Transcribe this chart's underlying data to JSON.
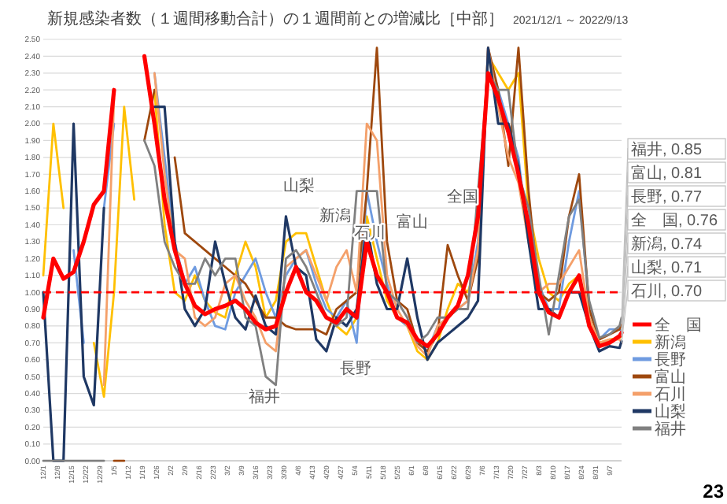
{
  "chart_data": {
    "type": "line",
    "title": "新規感染者数（１週間移動合計）の１週間前との増減比［中部］",
    "subtitle": "2021/12/1 ～ 2022/9/13",
    "x": [
      "2021-12-01",
      "2021-12-06",
      "2021-12-11",
      "2021-12-16",
      "2021-12-21",
      "2021-12-26",
      "2021-12-31",
      "2022-01-05",
      "2022-01-10",
      "2022-01-15",
      "2022-01-20",
      "2022-01-25",
      "2022-01-30",
      "2022-02-04",
      "2022-02-09",
      "2022-02-14",
      "2022-02-19",
      "2022-02-24",
      "2022-03-01",
      "2022-03-06",
      "2022-03-11",
      "2022-03-16",
      "2022-03-21",
      "2022-03-26",
      "2022-03-31",
      "2022-04-05",
      "2022-04-10",
      "2022-04-15",
      "2022-04-20",
      "2022-04-25",
      "2022-04-30",
      "2022-05-05",
      "2022-05-10",
      "2022-05-15",
      "2022-05-20",
      "2022-05-25",
      "2022-05-30",
      "2022-06-04",
      "2022-06-09",
      "2022-06-14",
      "2022-06-19",
      "2022-06-24",
      "2022-06-29",
      "2022-07-04",
      "2022-07-09",
      "2022-07-14",
      "2022-07-19",
      "2022-07-24",
      "2022-07-29",
      "2022-08-03",
      "2022-08-08",
      "2022-08-13",
      "2022-08-18",
      "2022-08-23",
      "2022-08-28",
      "2022-09-02",
      "2022-09-07",
      "2022-09-12",
      "2022-09-13"
    ],
    "series": [
      {
        "name": "全　国",
        "color": "#ff0000",
        "values": [
          0.85,
          1.2,
          1.08,
          1.12,
          1.3,
          1.52,
          1.6,
          2.2,
          null,
          null,
          2.4,
          2.0,
          1.55,
          1.25,
          1.05,
          0.92,
          0.87,
          0.9,
          0.92,
          0.95,
          0.9,
          0.82,
          0.78,
          0.8,
          1.0,
          1.15,
          1.0,
          0.95,
          0.85,
          0.82,
          0.9,
          0.85,
          1.3,
          1.1,
          1.0,
          0.85,
          0.82,
          0.72,
          0.68,
          0.75,
          0.85,
          0.92,
          1.1,
          1.45,
          2.3,
          2.15,
          1.95,
          1.7,
          1.4,
          1.0,
          0.88,
          0.85,
          1.0,
          1.1,
          0.8,
          0.68,
          0.7,
          0.74,
          0.76
        ]
      },
      {
        "name": "新潟",
        "color": "#ffc000",
        "values": [
          1.1,
          2.0,
          1.5,
          null,
          null,
          0.7,
          0.38,
          1.0,
          2.1,
          1.55,
          null,
          2.2,
          1.4,
          1.0,
          0.95,
          1.1,
          0.95,
          0.88,
          0.85,
          1.1,
          1.3,
          1.15,
          0.85,
          0.95,
          1.3,
          1.35,
          1.35,
          1.15,
          0.95,
          0.8,
          0.75,
          0.85,
          1.45,
          1.2,
          0.95,
          0.85,
          0.8,
          0.65,
          0.6,
          0.7,
          0.9,
          1.05,
          1.0,
          1.2,
          2.4,
          2.3,
          2.2,
          2.3,
          1.5,
          1.2,
          1.0,
          0.95,
          1.05,
          1.1,
          0.85,
          0.7,
          0.72,
          0.73,
          0.74
        ]
      },
      {
        "name": "長野",
        "color": "#6f9be0",
        "values": [
          null,
          null,
          null,
          1.25,
          0.7,
          null,
          1.5,
          2.0,
          null,
          null,
          null,
          2.3,
          1.8,
          1.3,
          1.05,
          1.15,
          0.95,
          0.8,
          0.78,
          1.0,
          1.1,
          1.2,
          1.0,
          0.85,
          1.1,
          1.2,
          1.25,
          1.05,
          0.9,
          0.85,
          0.95,
          0.7,
          1.6,
          1.3,
          1.05,
          0.85,
          0.8,
          0.7,
          0.65,
          0.8,
          0.85,
          0.9,
          0.95,
          1.3,
          2.4,
          2.2,
          2.0,
          1.8,
          1.3,
          1.05,
          0.9,
          0.9,
          1.3,
          1.6,
          0.9,
          0.72,
          0.78,
          0.78,
          0.77
        ]
      },
      {
        "name": "富山",
        "color": "#9e480e",
        "values": [
          null,
          null,
          null,
          null,
          null,
          null,
          null,
          0.0,
          0.0,
          null,
          1.9,
          2.2,
          null,
          1.8,
          1.35,
          1.3,
          1.25,
          1.2,
          1.15,
          1.1,
          1.05,
          0.95,
          0.85,
          0.85,
          0.8,
          0.78,
          0.78,
          0.78,
          0.75,
          0.9,
          0.95,
          1.0,
          1.6,
          2.45,
          1.3,
          0.95,
          0.9,
          0.7,
          0.65,
          0.75,
          1.28,
          1.1,
          0.95,
          1.2,
          2.45,
          2.2,
          1.75,
          2.45,
          1.6,
          1.0,
          0.95,
          1.0,
          1.45,
          1.7,
          0.9,
          0.72,
          0.75,
          0.78,
          0.81
        ]
      },
      {
        "name": "石川",
        "color": "#f4a06a",
        "values": [
          null,
          null,
          null,
          null,
          null,
          null,
          0.45,
          2.15,
          null,
          null,
          null,
          2.3,
          1.7,
          1.25,
          1.2,
          0.85,
          0.8,
          0.85,
          1.05,
          1.1,
          0.95,
          0.85,
          0.7,
          0.65,
          1.15,
          1.2,
          1.25,
          1.1,
          0.95,
          1.15,
          1.25,
          1.0,
          2.0,
          1.9,
          1.1,
          0.9,
          0.8,
          0.68,
          0.62,
          0.8,
          0.85,
          0.9,
          0.95,
          1.25,
          2.45,
          2.1,
          1.8,
          1.65,
          1.3,
          1.0,
          1.05,
          1.05,
          1.15,
          1.25,
          0.85,
          0.7,
          0.72,
          0.72,
          0.7
        ]
      },
      {
        "name": "山梨",
        "color": "#1f3864",
        "values": [
          1.0,
          0.0,
          0.0,
          2.0,
          0.5,
          0.33,
          1.5,
          null,
          null,
          null,
          null,
          2.1,
          2.1,
          1.3,
          0.9,
          0.8,
          0.9,
          1.3,
          1.05,
          0.85,
          0.78,
          0.98,
          0.8,
          0.75,
          1.45,
          1.15,
          1.1,
          0.72,
          0.65,
          0.85,
          0.8,
          0.9,
          1.4,
          1.05,
          0.9,
          0.9,
          1.2,
          0.85,
          0.6,
          0.7,
          0.75,
          0.8,
          0.85,
          0.95,
          2.45,
          2.0,
          2.0,
          1.75,
          1.3,
          0.9,
          0.9,
          0.85,
          1.0,
          1.0,
          0.8,
          0.65,
          0.68,
          0.67,
          0.71
        ]
      },
      {
        "name": "福井",
        "color": "#808080",
        "values": [
          0.0,
          0.0,
          0.0,
          0.0,
          0.0,
          0.0,
          0.0,
          null,
          null,
          null,
          1.9,
          1.75,
          1.3,
          1.15,
          1.05,
          1.05,
          1.2,
          1.1,
          1.2,
          1.2,
          0.85,
          0.8,
          0.5,
          0.45,
          1.2,
          1.25,
          1.15,
          1.0,
          0.85,
          0.8,
          0.85,
          1.6,
          1.6,
          1.6,
          1.0,
          0.95,
          0.85,
          0.7,
          0.75,
          0.85,
          0.85,
          0.9,
          0.9,
          1.6,
          2.3,
          2.2,
          2.2,
          1.7,
          1.5,
          1.1,
          0.75,
          1.1,
          1.45,
          1.55,
          0.95,
          0.73,
          0.75,
          0.8,
          0.85
        ]
      }
    ],
    "xlim": [
      "2021-12-01",
      "2022-09-13"
    ],
    "ylim": [
      0,
      2.5
    ],
    "xticks": [
      {
        "value": "2021-12-01",
        "label": "12/1"
      },
      {
        "value": "2021-12-08",
        "label": "12/8"
      },
      {
        "value": "2021-12-15",
        "label": "12/15"
      },
      {
        "value": "2021-12-22",
        "label": "12/22"
      },
      {
        "value": "2021-12-29",
        "label": "12/29"
      },
      {
        "value": "2022-01-05",
        "label": "1/5"
      },
      {
        "value": "2022-01-12",
        "label": "1/12"
      },
      {
        "value": "2022-01-19",
        "label": "1/19"
      },
      {
        "value": "2022-01-26",
        "label": "1/26"
      },
      {
        "value": "2022-02-02",
        "label": "2/2"
      },
      {
        "value": "2022-02-09",
        "label": "2/9"
      },
      {
        "value": "2022-02-16",
        "label": "2/16"
      },
      {
        "value": "2022-02-23",
        "label": "2/23"
      },
      {
        "value": "2022-03-02",
        "label": "3/2"
      },
      {
        "value": "2022-03-09",
        "label": "3/9"
      },
      {
        "value": "2022-03-16",
        "label": "3/16"
      },
      {
        "value": "2022-03-23",
        "label": "3/23"
      },
      {
        "value": "2022-03-30",
        "label": "3/30"
      },
      {
        "value": "2022-04-06",
        "label": "4/6"
      },
      {
        "value": "2022-04-13",
        "label": "4/13"
      },
      {
        "value": "2022-04-20",
        "label": "4/20"
      },
      {
        "value": "2022-04-27",
        "label": "4/27"
      },
      {
        "value": "2022-05-04",
        "label": "5/4"
      },
      {
        "value": "2022-05-11",
        "label": "5/11"
      },
      {
        "value": "2022-05-18",
        "label": "5/18"
      },
      {
        "value": "2022-05-25",
        "label": "5/25"
      },
      {
        "value": "2022-06-01",
        "label": "6/1"
      },
      {
        "value": "2022-06-08",
        "label": "6/8"
      },
      {
        "value": "2022-06-15",
        "label": "6/15"
      },
      {
        "value": "2022-06-22",
        "label": "6/22"
      },
      {
        "value": "2022-06-29",
        "label": "6/29"
      },
      {
        "value": "2022-07-06",
        "label": "7/6"
      },
      {
        "value": "2022-07-13",
        "label": "7/13"
      },
      {
        "value": "2022-07-20",
        "label": "7/20"
      },
      {
        "value": "2022-07-27",
        "label": "7/27"
      },
      {
        "value": "2022-08-03",
        "label": "8/3"
      },
      {
        "value": "2022-08-10",
        "label": "8/10"
      },
      {
        "value": "2022-08-17",
        "label": "8/17"
      },
      {
        "value": "2022-08-24",
        "label": "8/24"
      },
      {
        "value": "2022-08-31",
        "label": "8/31"
      },
      {
        "value": "2022-09-07",
        "label": "9/7"
      }
    ],
    "yticks": [
      {
        "value": 0,
        "label": "0.00"
      },
      {
        "value": 0.1,
        "label": "0.10"
      },
      {
        "value": 0.2,
        "label": "0.20"
      },
      {
        "value": 0.3,
        "label": "0.30"
      },
      {
        "value": 0.4,
        "label": "0.40"
      },
      {
        "value": 0.5,
        "label": "0.50"
      },
      {
        "value": 0.6,
        "label": "0.60"
      },
      {
        "value": 0.7,
        "label": "0.70"
      },
      {
        "value": 0.8,
        "label": "0.80"
      },
      {
        "value": 0.9,
        "label": "0.90"
      },
      {
        "value": 1.0,
        "label": "1.00"
      },
      {
        "value": 1.1,
        "label": "1.10"
      },
      {
        "value": 1.2,
        "label": "1.20"
      },
      {
        "value": 1.3,
        "label": "1.30"
      },
      {
        "value": 1.4,
        "label": "1.40"
      },
      {
        "value": 1.5,
        "label": "1.50"
      },
      {
        "value": 1.6,
        "label": "1.60"
      },
      {
        "value": 1.7,
        "label": "1.70"
      },
      {
        "value": 1.8,
        "label": "1.80"
      },
      {
        "value": 1.9,
        "label": "1.90"
      },
      {
        "value": 2.0,
        "label": "2.00"
      },
      {
        "value": 2.1,
        "label": "2.10"
      },
      {
        "value": 2.2,
        "label": "2.20"
      },
      {
        "value": 2.3,
        "label": "2.30"
      },
      {
        "value": 2.4,
        "label": "2.40"
      },
      {
        "value": 2.5,
        "label": "2.50"
      }
    ],
    "ref_lines": [
      {
        "axis": "y",
        "value": 1.0,
        "color": "#ff0000",
        "line_style": "dashed"
      }
    ],
    "annotations": [
      "山梨",
      "新潟",
      "石川",
      "長野",
      "福井",
      "富山",
      "全国",
      {
        "text": "福井, 0.85",
        "x": "2022-09-13",
        "y": 0.85
      },
      {
        "text": "富山, 0.81",
        "x": "2022-09-13",
        "y": 0.81
      },
      {
        "text": "長野, 0.77",
        "x": "2022-09-13",
        "y": 0.77
      },
      {
        "text": "全　国, 0.76",
        "x": "2022-09-13",
        "y": 0.76
      },
      {
        "text": "新潟, 0.74",
        "x": "2022-09-13",
        "y": 0.74
      },
      {
        "text": "山梨, 0.71",
        "x": "2022-09-13",
        "y": 0.71
      },
      {
        "text": "石川, 0.70",
        "x": "2022-09-13",
        "y": 0.7
      },
      "23"
    ],
    "grid": "y",
    "legend": "bottom right",
    "line_style": "solid",
    "marker": "none"
  }
}
